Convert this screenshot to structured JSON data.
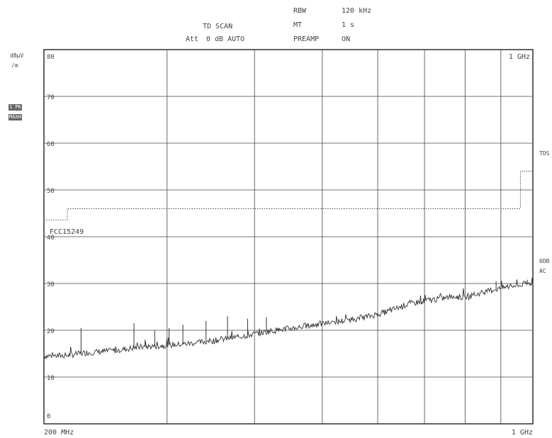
{
  "header": {
    "mode": "TD SCAN",
    "att_label": "Att",
    "att_value": "0 dB AUTO",
    "rbw_label": "RBW",
    "rbw_value": "120 kHz",
    "mt_label": "MT",
    "mt_value": "1 s",
    "preamp_label": "PREAMP",
    "preamp_value": "ON"
  },
  "sidebar": {
    "unit_line1": "dBµV",
    "unit_line2": "/m",
    "trace_badge_1": "1 PK",
    "trace_badge_2": "MAXH",
    "right_label_1": "TDS",
    "right_label_2": "6DB",
    "right_label_3": "AC"
  },
  "chart_data": {
    "type": "line",
    "title": "",
    "xlabel": "",
    "ylabel": "dBµV/m",
    "x_start_label": "200 MHz",
    "x_end_label": "1 GHz",
    "top_right_label": "1 GHz",
    "xlim_mhz": [
      200,
      1000
    ],
    "ylim": [
      0,
      80
    ],
    "yticks": [
      0,
      10,
      20,
      30,
      40,
      50,
      60,
      70,
      80
    ],
    "ytick_labels": [
      "0",
      "10",
      "20",
      "30",
      "40",
      "50",
      "60",
      "70",
      "80"
    ],
    "grid": true,
    "limit_line": {
      "name": "FCC15249",
      "style": "dotted",
      "points_mhz_db": [
        [
          200,
          43.6
        ],
        [
          216,
          43.6
        ],
        [
          216,
          46
        ],
        [
          960,
          46
        ],
        [
          960,
          54
        ],
        [
          1000,
          54
        ]
      ]
    },
    "series": [
      {
        "name": "",
        "style": "solid",
        "x_mhz": [
          200,
          215,
          230,
          250,
          275,
          300,
          325,
          350,
          380,
          420,
          460,
          500,
          540,
          580,
          620,
          660,
          700,
          740,
          770,
          800,
          840,
          880,
          920,
          960,
          1000
        ],
        "y_db": [
          14.5,
          14.6,
          15.2,
          15.6,
          16.4,
          16.8,
          17.2,
          17.8,
          18.6,
          19.8,
          20.6,
          21.4,
          22.1,
          22.9,
          24.0,
          25.5,
          26.3,
          26.8,
          27.2,
          27.0,
          27.9,
          28.7,
          29.3,
          29.6,
          30.2
        ]
      }
    ],
    "spikes": [
      {
        "x_mhz": 226,
        "y_db": 20.5
      },
      {
        "x_mhz": 269,
        "y_db": 21.5
      },
      {
        "x_mhz": 279,
        "y_db": 18.0
      },
      {
        "x_mhz": 288,
        "y_db": 20.0
      },
      {
        "x_mhz": 302,
        "y_db": 20.5
      },
      {
        "x_mhz": 316,
        "y_db": 21.2
      },
      {
        "x_mhz": 341,
        "y_db": 22.0
      },
      {
        "x_mhz": 366,
        "y_db": 23.0
      },
      {
        "x_mhz": 391,
        "y_db": 22.5
      },
      {
        "x_mhz": 416,
        "y_db": 22.8
      },
      {
        "x_mhz": 625,
        "y_db": 25.0
      },
      {
        "x_mhz": 886,
        "y_db": 30.5
      },
      {
        "x_mhz": 982,
        "y_db": 30.8
      }
    ]
  }
}
